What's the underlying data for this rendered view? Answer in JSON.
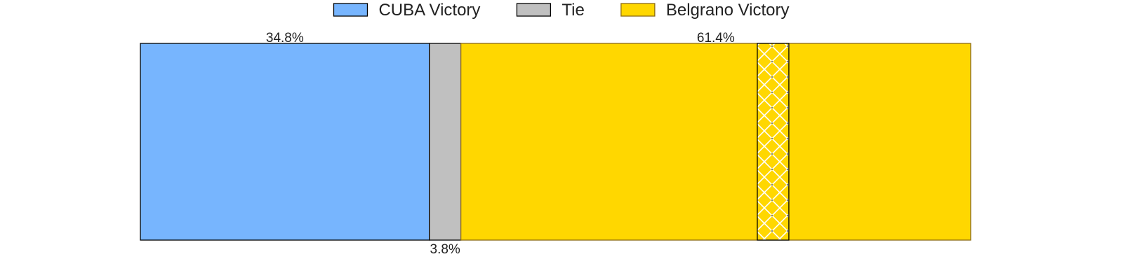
{
  "chart_data": {
    "type": "bar",
    "orientation": "horizontal",
    "stacked": true,
    "xlim": [
      0,
      100
    ],
    "grid": false,
    "legend_placement": "top-center",
    "series": [
      {
        "name": "CUBA Victory",
        "value": 34.8,
        "label": "34.8%",
        "color": "#77b5fe",
        "edge": "#000000"
      },
      {
        "name": "Tie",
        "value": 3.8,
        "label": "3.8%",
        "color": "#c0c0c0",
        "edge": "#000000"
      },
      {
        "name": "Belgrano Victory",
        "value": 61.4,
        "label": "61.4%",
        "color": "#ffd700",
        "edge": "#8b6914"
      }
    ],
    "highlight_segment": {
      "start": 74.3,
      "end": 78.1,
      "fill": "#ffd700",
      "pattern": "crosshatch"
    }
  }
}
